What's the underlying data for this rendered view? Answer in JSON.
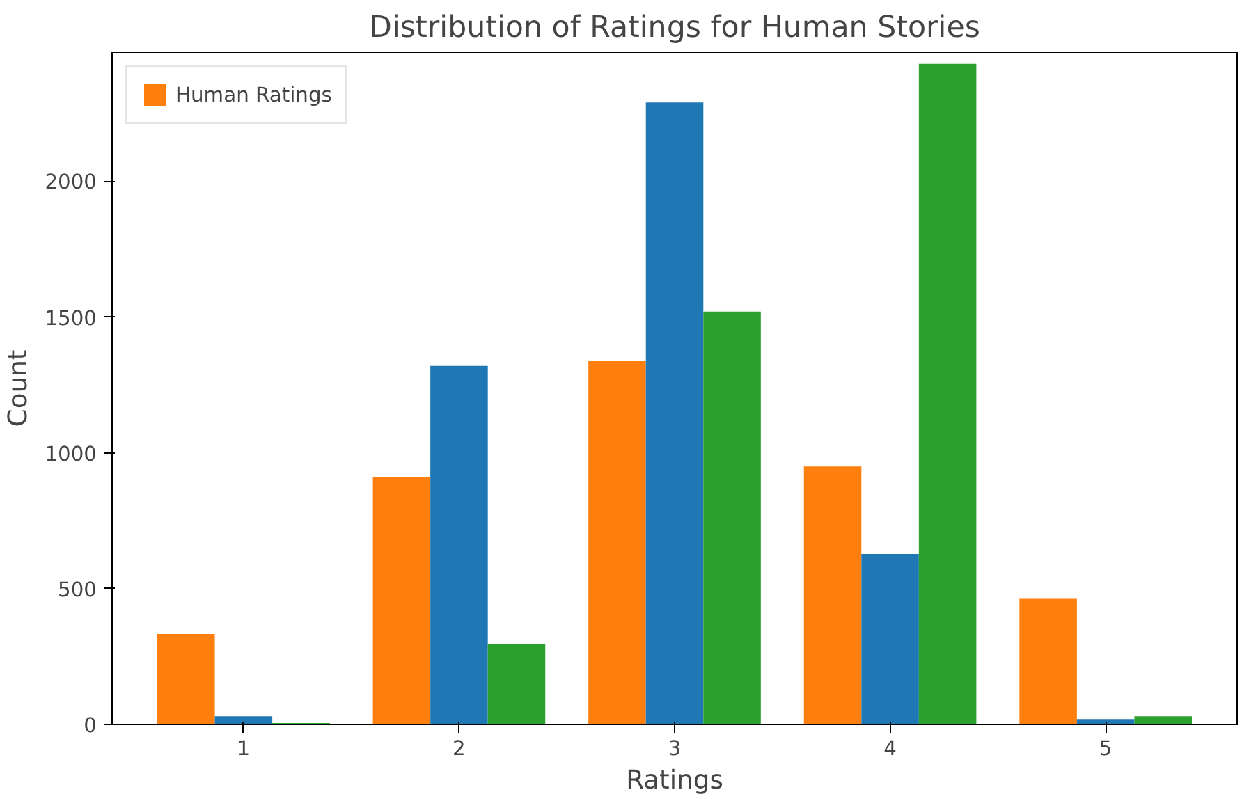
{
  "chart_data": {
    "type": "bar",
    "title": "Distribution of Ratings for Human Stories",
    "xlabel": "Ratings",
    "ylabel": "Count",
    "categories": [
      "1",
      "2",
      "3",
      "4",
      "5"
    ],
    "series": [
      {
        "name": "Human Ratings",
        "color": "#ff7f0e",
        "values": [
          333,
          910,
          1340,
          950,
          465
        ]
      },
      {
        "color": "#1f77b4",
        "values": [
          30,
          1320,
          2290,
          628,
          20
        ]
      },
      {
        "color": "#2ca02c",
        "values": [
          5,
          295,
          1520,
          2432,
          30
        ]
      }
    ],
    "ylim": [
      0,
      2475
    ],
    "yticks": [
      0,
      500,
      1000,
      1500,
      2000
    ],
    "legend": "top left",
    "grid": false
  }
}
